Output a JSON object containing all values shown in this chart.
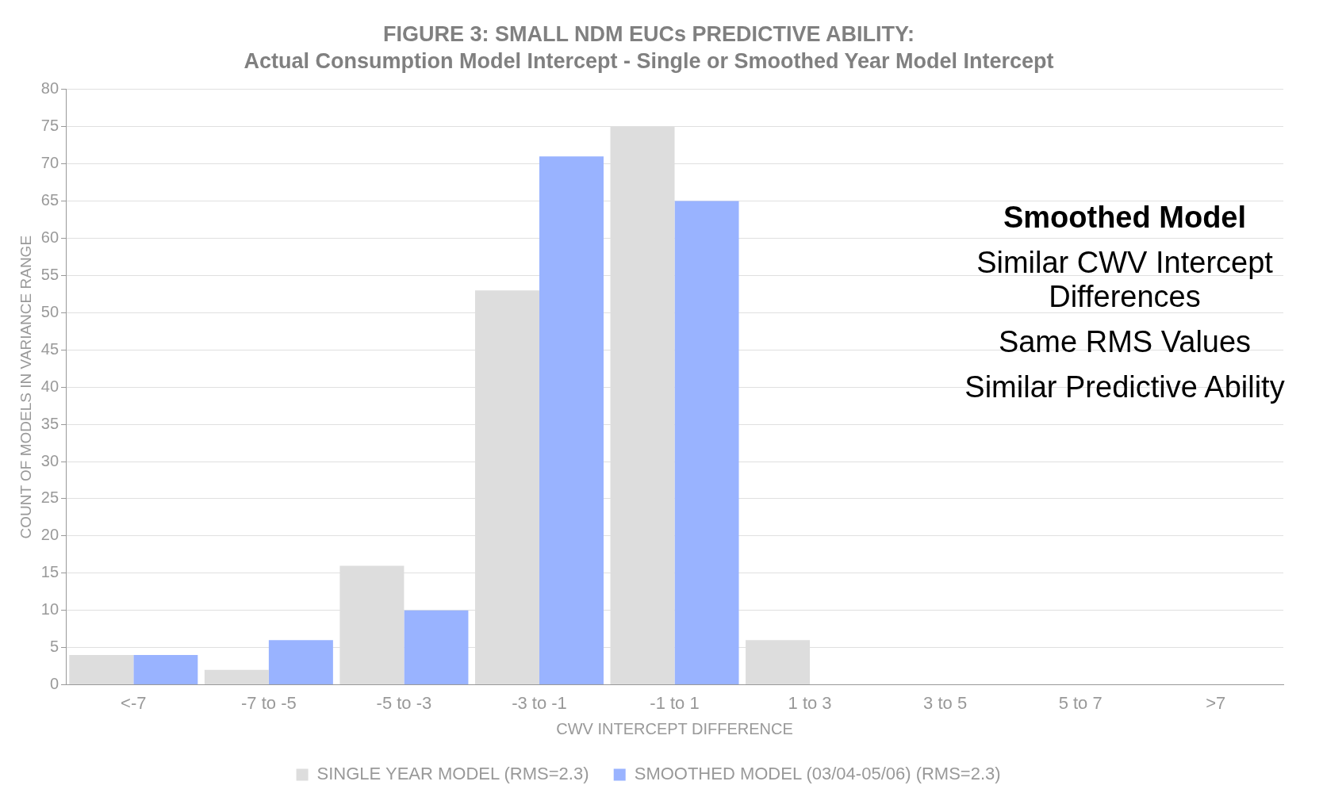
{
  "chart_data": {
    "type": "bar",
    "title": "FIGURE 3: SMALL NDM EUCs PREDICTIVE ABILITY:",
    "subtitle": "Actual Consumption Model Intercept - Single or Smoothed Year Model Intercept",
    "xlabel": "CWV INTERCEPT DIFFERENCE",
    "ylabel": "COUNT OF MODELS IN VARIANCE RANGE",
    "categories": [
      "<-7",
      "-7 to -5",
      "-5 to -3",
      "-3 to -1",
      "-1 to 1",
      "1 to 3",
      "3 to 5",
      "5 to 7",
      ">7"
    ],
    "series": [
      {
        "name": "SINGLE YEAR MODEL (RMS=2.3)",
        "color": "#dddddd",
        "values": [
          4,
          2,
          16,
          53,
          75,
          6,
          0,
          0,
          0
        ]
      },
      {
        "name": "SMOOTHED MODEL (03/04-05/06) (RMS=2.3)",
        "color": "#99b3ff",
        "values": [
          4,
          6,
          10,
          71,
          65,
          0,
          0,
          0,
          0
        ]
      }
    ],
    "ylim": [
      0,
      80
    ],
    "yticks": [
      0,
      5,
      10,
      15,
      20,
      25,
      30,
      35,
      40,
      45,
      50,
      55,
      60,
      65,
      70,
      75,
      80
    ],
    "grid": "y",
    "legend": "bottom",
    "annotations": [
      "Smoothed Model",
      "Similar CWV Intercept Differences",
      "Same RMS Values",
      "Similar Predictive Ability"
    ]
  }
}
